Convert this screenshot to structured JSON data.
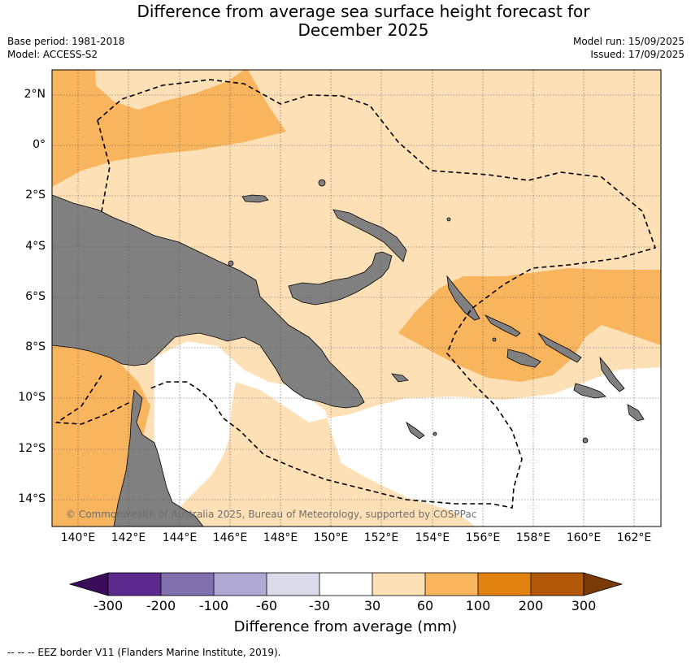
{
  "title_line1": "Difference from average sea surface height forecast for",
  "title_line2": "December 2025",
  "base_period": "Base period: 1981-2018",
  "model": "Model: ACCESS-S2",
  "model_run": "Model run: 15/09/2025",
  "issued": "Issued: 17/09/2025",
  "copyright": "© Commonwealth of Australia 2025, Bureau of Meteorology, supported by COSPPac",
  "lat_labels": [
    "2°N",
    "0°",
    "2°S",
    "4°S",
    "6°S",
    "8°S",
    "10°S",
    "12°S",
    "14°S"
  ],
  "lon_labels": [
    "140°E",
    "142°E",
    "144°E",
    "146°E",
    "148°E",
    "150°E",
    "152°E",
    "154°E",
    "156°E",
    "158°E",
    "160°E",
    "162°E"
  ],
  "colorbar": {
    "title": "Difference from average (mm)",
    "tick_labels": [
      "-300",
      "-200",
      "-100",
      "-60",
      "-30",
      "30",
      "60",
      "100",
      "200",
      "300"
    ],
    "colors": [
      "#3b0b5c",
      "#5b2a8c",
      "#8070ae",
      "#aea8d2",
      "#d9dbeb",
      "#ffffff",
      "#fde0b5",
      "#f9b45e",
      "#e1820f",
      "#b25808",
      "#7a3a06"
    ]
  },
  "footnote": "--  --  -- EEZ border V11 (Flanders Marine Institute, 2019).",
  "colors": {
    "land": "#808080",
    "grid": "#555555"
  }
}
